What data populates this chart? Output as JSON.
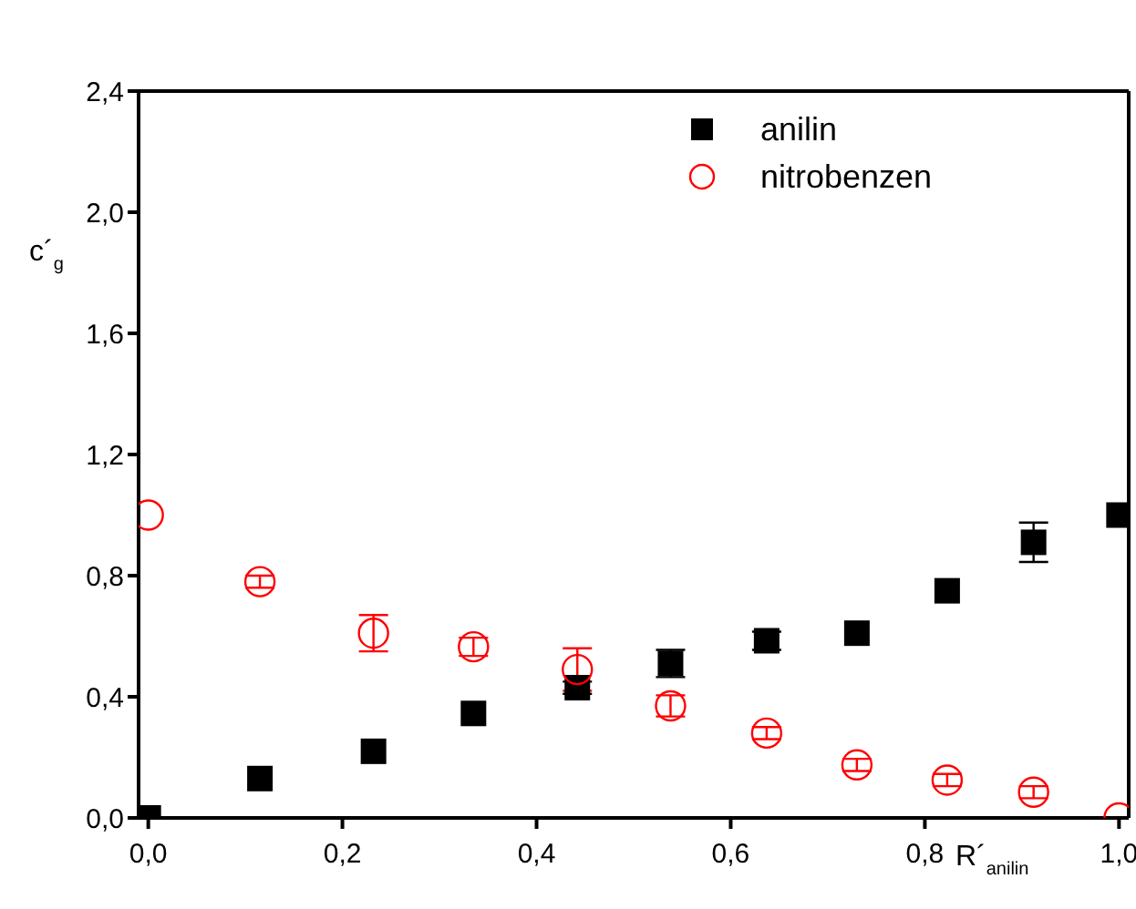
{
  "chart_data": {
    "type": "scatter",
    "xlabel": "R´$_{anilin}$",
    "ylabel": "c´$_{g}$",
    "xlim": [
      -0.01,
      1.01
    ],
    "xticks": [
      {
        "value": 0,
        "label": "0,0"
      },
      {
        "value": 0.2,
        "label": "0,2"
      },
      {
        "value": 0.4,
        "label": "0,4"
      },
      {
        "value": 0.6,
        "label": "0,6"
      },
      {
        "value": 0.8,
        "label": "0,8"
      },
      {
        "value": 1,
        "label": "1,0"
      }
    ],
    "ylim": [
      0,
      2.4
    ],
    "yticks": [
      {
        "value": 0,
        "label": "0,0"
      },
      {
        "value": 0.4,
        "label": "0,4"
      },
      {
        "value": 0.8,
        "label": "0,8"
      },
      {
        "value": 1.2,
        "label": "1,2"
      },
      {
        "value": 1.6,
        "label": "1,6"
      },
      {
        "value": 2,
        "label": "2,0"
      },
      {
        "value": 2.4,
        "label": "2,4"
      }
    ],
    "grid": false,
    "legend": "top right",
    "series": [
      {
        "name": "anilin",
        "color": "#000000",
        "marker": "square",
        "x": [
          0,
          0.115,
          0.232,
          0.335,
          0.442,
          0.538,
          0.637,
          0.73,
          0.823,
          0.912,
          1.0
        ],
        "values": [
          0,
          0.13,
          0.22,
          0.345,
          0.43,
          0.51,
          0.585,
          0.61,
          0.75,
          0.91,
          1.0
        ],
        "errors": [
          null,
          null,
          null,
          null,
          0.02,
          0.045,
          0.03,
          null,
          null,
          0.065,
          null
        ]
      },
      {
        "name": "nitrobenzen",
        "color": "#ff0000",
        "marker": "circle",
        "x": [
          0,
          0.115,
          0.232,
          0.335,
          0.442,
          0.538,
          0.637,
          0.73,
          0.823,
          0.912,
          1.0
        ],
        "values": [
          1.0,
          0.78,
          0.61,
          0.565,
          0.49,
          0.37,
          0.28,
          0.175,
          0.125,
          0.085,
          0
        ],
        "errors": [
          null,
          0.02,
          0.06,
          0.03,
          0.07,
          0.035,
          0.02,
          0.02,
          0.02,
          0.02,
          null
        ]
      }
    ]
  }
}
